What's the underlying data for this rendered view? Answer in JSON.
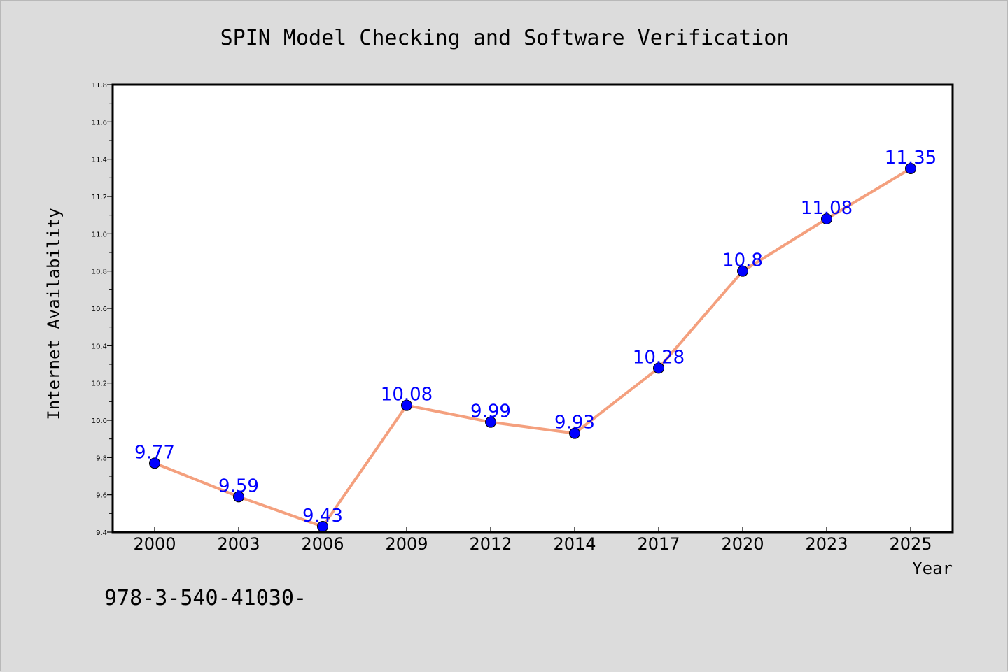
{
  "chart_data": {
    "type": "line",
    "title": "SPIN Model Checking and Software Verification",
    "xlabel": "Year",
    "ylabel": "Internet Availability",
    "categories": [
      "2000",
      "2003",
      "2006",
      "2009",
      "2012",
      "2014",
      "2017",
      "2020",
      "2023",
      "2025"
    ],
    "series": [
      {
        "values": [
          9.77,
          9.59,
          9.43,
          10.08,
          9.99,
          9.93,
          10.28,
          10.8,
          11.08,
          11.35
        ],
        "data_labels": [
          "9.77",
          "9.59",
          "9.43",
          "10.08",
          "9.99",
          "9.93",
          "10.28",
          "10.8",
          "11.08",
          "11.35"
        ],
        "line_color": "#f4a07e",
        "marker_color": "#0000ff"
      }
    ],
    "ylim": [
      9.4,
      11.8
    ],
    "yticks": [
      9.4,
      9.6,
      9.8,
      10.0,
      10.2,
      10.4,
      10.6,
      10.8,
      11.0,
      11.2,
      11.4,
      11.6,
      11.8
    ],
    "ytick_labels": [
      "9.4",
      "9.6",
      "9.8",
      "10.0",
      "10.2",
      "10.4",
      "10.6",
      "10.8",
      "11.0",
      "11.2",
      "11.4",
      "11.6",
      "11.8"
    ],
    "grid": false,
    "legend": "none",
    "background_color": "#dcdcdc",
    "plot_background_color": "#ffffff",
    "data_label_color": "#0000ff"
  },
  "footnote": "978-3-540-41030-"
}
